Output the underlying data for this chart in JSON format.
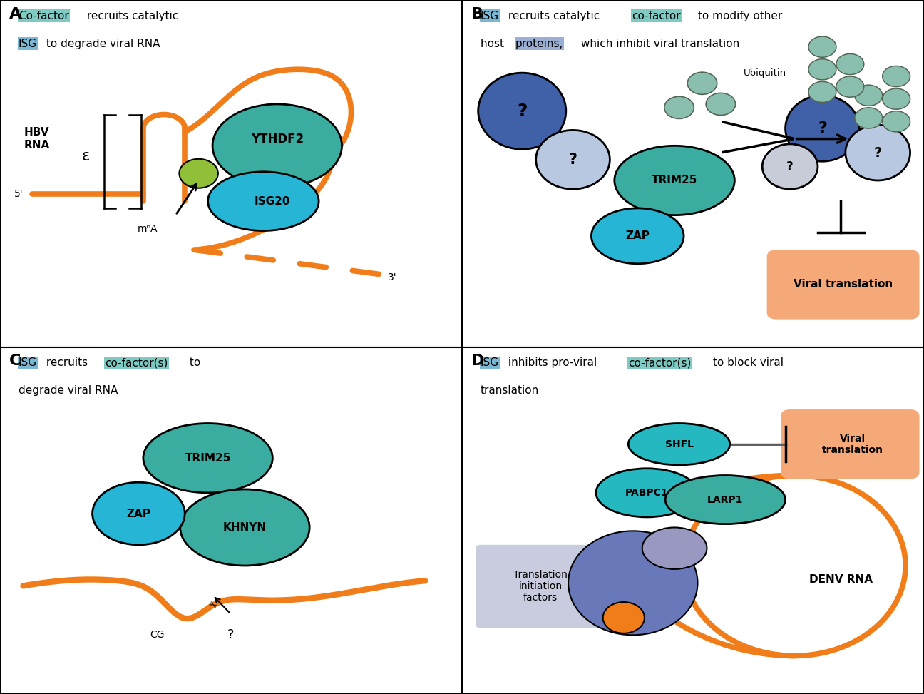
{
  "colors": {
    "orange": "#f07d1a",
    "teal_dark": "#1d9a8a",
    "teal_mid": "#3aada0",
    "teal_light": "#7ecbc4",
    "blue_dark": "#2a4a90",
    "blue_mid": "#4a78c0",
    "blue_light": "#7ab8d4",
    "cyan": "#26b5d4",
    "green_yellow": "#8fc038",
    "gray_blue": "#9bafd4",
    "salmon": "#f5a878",
    "light_blue_bg": "#c8ccde",
    "ubiquitin": "#8abfb0",
    "ribo_large": "#6a7ab8",
    "ribo_small": "#9898c0",
    "highlight_teal": "#7ecbc4",
    "highlight_blue": "#7ab8d4",
    "highlight_purple": "#9bafd4"
  },
  "panel_A": {
    "title_line1": [
      {
        "t": "Co-factor",
        "h": "#7ecbc4"
      },
      {
        "t": " recruits catalytic",
        "h": null
      }
    ],
    "title_line2": [
      {
        "t": "ISG",
        "h": "#7ab8d4"
      },
      {
        "t": " to degrade viral RNA",
        "h": null
      }
    ]
  },
  "panel_B": {
    "title_line1": [
      {
        "t": "ISG",
        "h": "#7ab8d4"
      },
      {
        "t": " recruits catalytic ",
        "h": null
      },
      {
        "t": "co-factor",
        "h": "#7ecbc4"
      },
      {
        "t": " to modify other",
        "h": null
      }
    ],
    "title_line2": [
      {
        "t": "host ",
        "h": null
      },
      {
        "t": "proteins,",
        "h": "#9bafd4"
      },
      {
        "t": " which inhibit viral translation",
        "h": null
      }
    ]
  },
  "panel_C": {
    "title_line1": [
      {
        "t": "ISG",
        "h": "#7ab8d4"
      },
      {
        "t": " recruits ",
        "h": null
      },
      {
        "t": "co-factor(s)",
        "h": "#7ecbc4"
      },
      {
        "t": " to",
        "h": null
      }
    ],
    "title_line2": [
      {
        "t": "degrade viral RNA",
        "h": null
      }
    ]
  },
  "panel_D": {
    "title_line1": [
      {
        "t": "ISG",
        "h": "#7ab8d4"
      },
      {
        "t": " inhibits pro-viral ",
        "h": null
      },
      {
        "t": "co-factor(s)",
        "h": "#7ecbc4"
      },
      {
        "t": " to block viral",
        "h": null
      }
    ],
    "title_line2": [
      {
        "t": "translation",
        "h": null
      }
    ]
  }
}
